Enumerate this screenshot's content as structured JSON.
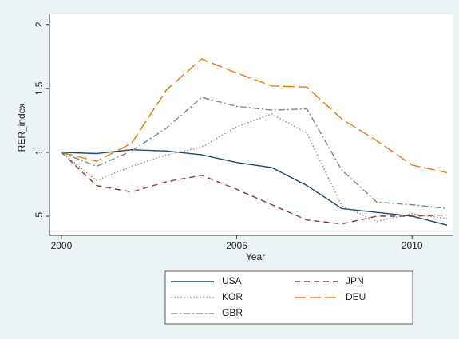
{
  "chart_data": {
    "type": "line",
    "x_label": "Year",
    "y_label": "RER_index",
    "x": [
      2000,
      2001,
      2002,
      2003,
      2004,
      2005,
      2006,
      2007,
      2008,
      2009,
      2010,
      2011
    ],
    "series": [
      {
        "name": "USA",
        "color": "#1a476f",
        "line_style": "solid",
        "values": [
          1.0,
          0.99,
          1.02,
          1.01,
          0.98,
          0.92,
          0.88,
          0.74,
          0.56,
          0.53,
          0.5,
          0.43
        ]
      },
      {
        "name": "JPN",
        "color": "#90353b",
        "line_style": "dash",
        "values": [
          1.0,
          0.74,
          0.69,
          0.77,
          0.82,
          0.71,
          0.59,
          0.47,
          0.44,
          0.5,
          0.5,
          0.51
        ]
      },
      {
        "name": "KOR",
        "color": "#7f9a6a",
        "line_style": "dot",
        "values": [
          1.0,
          0.78,
          0.89,
          0.98,
          1.04,
          1.2,
          1.3,
          1.15,
          0.58,
          0.46,
          0.52,
          0.48
        ]
      },
      {
        "name": "DEU",
        "color": "#e37e00",
        "line_style": "longdash",
        "values": [
          1.0,
          0.93,
          1.07,
          1.49,
          1.73,
          1.62,
          1.52,
          1.51,
          1.26,
          1.09,
          0.9,
          0.84
        ]
      },
      {
        "name": "GBR",
        "color": "#6e8e84",
        "line_style": "dashdot",
        "values": [
          1.0,
          0.89,
          1.01,
          1.19,
          1.43,
          1.36,
          1.33,
          1.34,
          0.86,
          0.61,
          0.59,
          0.56
        ]
      }
    ],
    "xlim": [
      1999.66,
      2011.18
    ],
    "xticks": [
      2000,
      2005,
      2010
    ],
    "ylim": [
      0.35,
      2.08
    ],
    "yticks": [
      {
        "value": 0.5,
        "label": ".5"
      },
      1,
      1.5,
      2
    ],
    "grid": false
  }
}
